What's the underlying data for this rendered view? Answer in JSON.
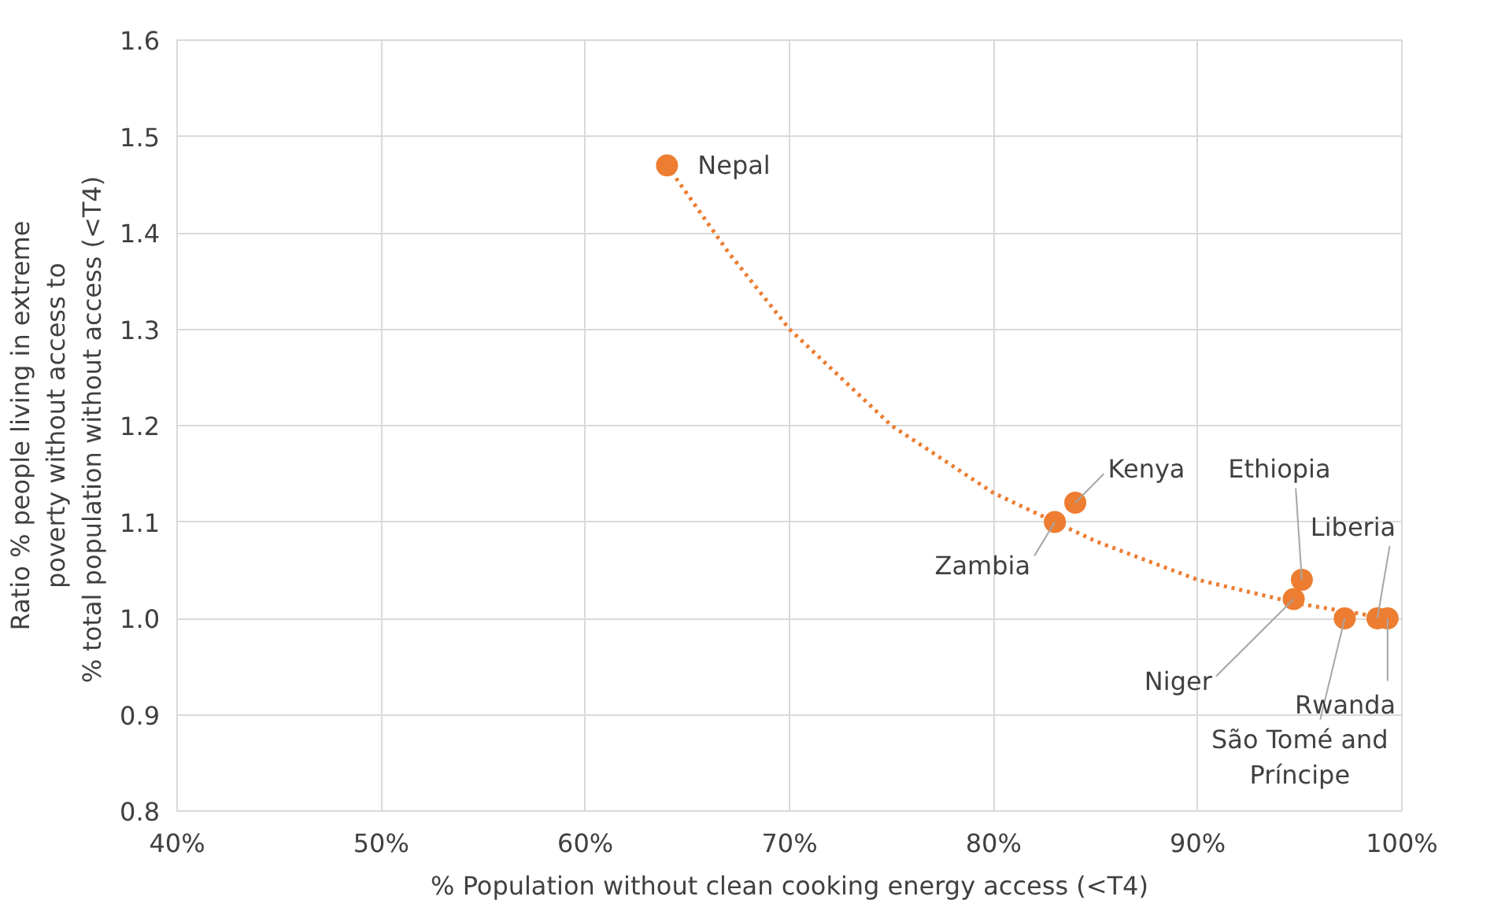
{
  "chart_data": {
    "type": "scatter",
    "xlabel": "% Population without clean cooking energy access (<T4)",
    "ylabel": "Ratio % people living in extreme\npoverty without access to\n% total population without  access (<T4)",
    "series": [
      {
        "color": "#ed7d31",
        "x": [
          64,
          84,
          83,
          95.1,
          94.7,
          97.2,
          98.8,
          99.3
        ],
        "values": [
          1.47,
          1.12,
          1.1,
          1.04,
          1.02,
          1.0,
          1.0,
          1.0
        ]
      },
      {
        "type": "line",
        "color": "#ed7d31",
        "line_style": "dotted",
        "marker": "none",
        "x": [
          64,
          67,
          70,
          75,
          80,
          85,
          90,
          95,
          99.3
        ],
        "values": [
          1.47,
          1.38,
          1.3,
          1.2,
          1.13,
          1.08,
          1.04,
          1.015,
          1.0
        ]
      }
    ],
    "annotations": [
      {
        "text": "Nepal",
        "x": 64,
        "y": 1.47
      },
      {
        "text": "Kenya",
        "x": 84,
        "y": 1.12
      },
      {
        "text": "Zambia",
        "x": 83,
        "y": 1.1
      },
      {
        "text": "Ethiopia",
        "x": 95.1,
        "y": 1.04
      },
      {
        "text": "Niger",
        "x": 94.7,
        "y": 1.02
      },
      {
        "text": "São Tomé and\nPríncipe",
        "x": 97.2,
        "y": 1.0
      },
      {
        "text": "Liberia",
        "x": 98.8,
        "y": 1.0
      },
      {
        "text": "Rwanda",
        "x": 99.3,
        "y": 1.0
      }
    ],
    "marker": "circle",
    "grid": true,
    "xlim": [
      40,
      100
    ],
    "xticks": [
      {
        "value": 40,
        "label": "40%"
      },
      {
        "value": 50,
        "label": "50%"
      },
      {
        "value": 60,
        "label": "60%"
      },
      {
        "value": 70,
        "label": "70%"
      },
      {
        "value": 80,
        "label": "80%"
      },
      {
        "value": 90,
        "label": "90%"
      },
      {
        "value": 100,
        "label": "100%"
      }
    ],
    "ylim": [
      0.8,
      1.6
    ],
    "yticks": [
      {
        "value": 0.8,
        "label": "0.8"
      },
      {
        "value": 0.9,
        "label": "0.9"
      },
      {
        "value": 1.0,
        "label": "1.0"
      },
      {
        "value": 1.1,
        "label": "1.1"
      },
      {
        "value": 1.2,
        "label": "1.2"
      },
      {
        "value": 1.3,
        "label": "1.3"
      },
      {
        "value": 1.4,
        "label": "1.4"
      },
      {
        "value": 1.5,
        "label": "1.5"
      },
      {
        "value": 1.6,
        "label": "1.6"
      }
    ]
  }
}
